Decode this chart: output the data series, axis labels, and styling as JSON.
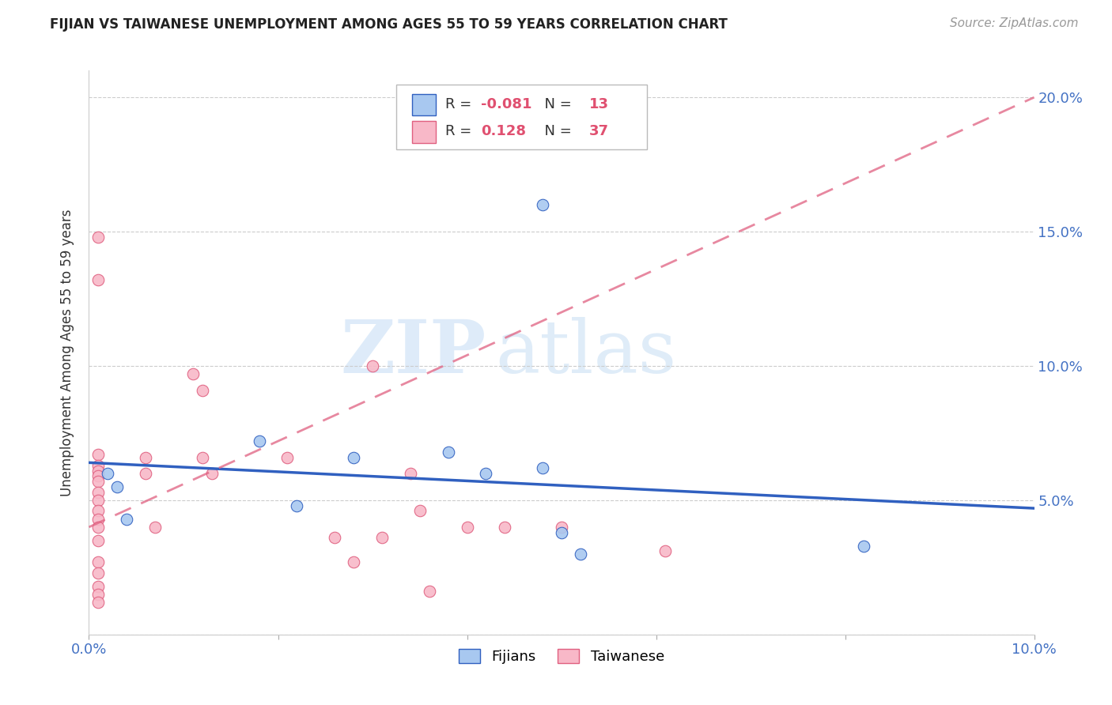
{
  "title": "FIJIAN VS TAIWANESE UNEMPLOYMENT AMONG AGES 55 TO 59 YEARS CORRELATION CHART",
  "source": "Source: ZipAtlas.com",
  "ylabel": "Unemployment Among Ages 55 to 59 years",
  "xlim": [
    0.0,
    0.1
  ],
  "ylim": [
    0.0,
    0.21
  ],
  "fijian_R": -0.081,
  "fijian_N": 13,
  "taiwanese_R": 0.128,
  "taiwanese_N": 37,
  "fijian_color": "#A8C8F0",
  "taiwanese_color": "#F8B8C8",
  "fijian_line_color": "#3060C0",
  "taiwanese_line_color": "#E06080",
  "fijian_scatter_x": [
    0.002,
    0.003,
    0.004,
    0.018,
    0.022,
    0.028,
    0.038,
    0.042,
    0.048,
    0.05,
    0.052,
    0.082,
    0.048
  ],
  "fijian_scatter_y": [
    0.06,
    0.055,
    0.043,
    0.072,
    0.048,
    0.066,
    0.068,
    0.06,
    0.062,
    0.038,
    0.03,
    0.033,
    0.16
  ],
  "taiwanese_scatter_x": [
    0.001,
    0.001,
    0.001,
    0.001,
    0.001,
    0.001,
    0.001,
    0.001,
    0.001,
    0.001,
    0.001,
    0.001,
    0.001,
    0.001,
    0.001,
    0.001,
    0.001,
    0.001,
    0.006,
    0.006,
    0.007,
    0.011,
    0.012,
    0.012,
    0.013,
    0.021,
    0.026,
    0.028,
    0.03,
    0.031,
    0.034,
    0.035,
    0.036,
    0.04,
    0.044,
    0.05,
    0.061
  ],
  "taiwanese_scatter_y": [
    0.148,
    0.132,
    0.067,
    0.063,
    0.061,
    0.059,
    0.057,
    0.053,
    0.05,
    0.046,
    0.043,
    0.04,
    0.035,
    0.027,
    0.023,
    0.018,
    0.015,
    0.012,
    0.066,
    0.06,
    0.04,
    0.097,
    0.091,
    0.066,
    0.06,
    0.066,
    0.036,
    0.027,
    0.1,
    0.036,
    0.06,
    0.046,
    0.016,
    0.04,
    0.04,
    0.04,
    0.031
  ],
  "fijian_trend_x": [
    0.0,
    0.1
  ],
  "fijian_trend_y": [
    0.064,
    0.047
  ],
  "taiwanese_trend_x": [
    0.0,
    0.1
  ],
  "taiwanese_trend_y": [
    0.04,
    0.2
  ],
  "watermark_zip": "ZIP",
  "watermark_atlas": "atlas",
  "legend_fijian_label": "Fijians",
  "legend_taiwanese_label": "Taiwanese",
  "background_color": "#FFFFFF",
  "grid_color": "#CCCCCC",
  "r_color": "#E05070",
  "n_color": "#E05070",
  "text_color": "#444444",
  "tick_color": "#4472C4"
}
